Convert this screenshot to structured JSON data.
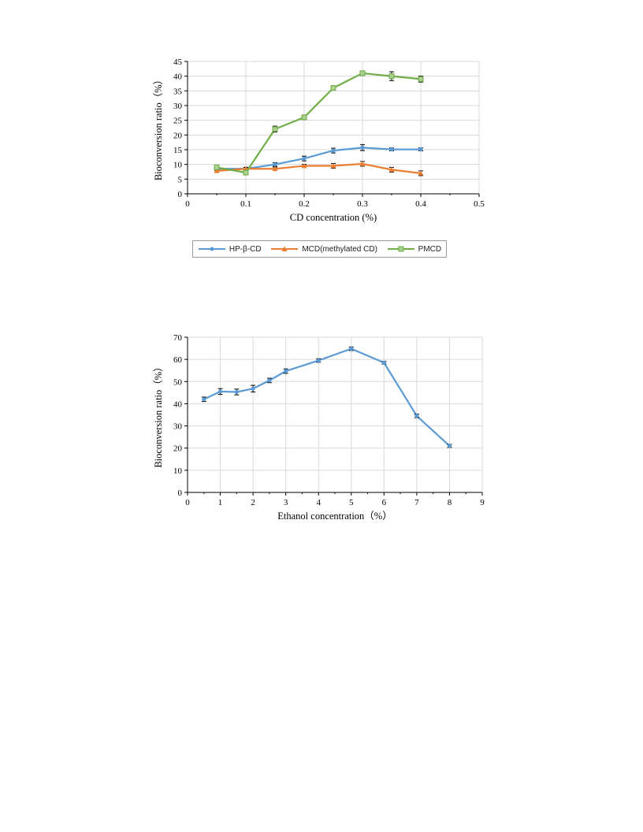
{
  "chart_data": [
    {
      "type": "line",
      "xlabel": "CD concentration (%)",
      "ylabel": "Bioconversion ratio（%）",
      "xlim": [
        0,
        0.5
      ],
      "ylim": [
        0,
        45
      ],
      "xticks": [
        0,
        0.1,
        0.2,
        0.3,
        0.4,
        0.5
      ],
      "yticks": [
        0,
        5,
        10,
        15,
        20,
        25,
        30,
        35,
        40,
        45
      ],
      "grid": true,
      "legend_position": "bottom",
      "x": [
        0.05,
        0.1,
        0.15,
        0.2,
        0.25,
        0.3,
        0.35,
        0.4
      ],
      "series": [
        {
          "name": "HP-β-CD",
          "color": "#5b9bd5",
          "marker": "circle",
          "values": [
            8.5,
            8.5,
            10.0,
            12.0,
            14.7,
            15.7,
            15.1,
            15.1
          ],
          "errors": [
            0.5,
            0.5,
            0.6,
            0.8,
            0.8,
            1.0,
            0.5,
            0.5
          ]
        },
        {
          "name": "MCD(methylated CD)",
          "color": "#ed7d31",
          "marker": "triangle",
          "values": [
            7.8,
            8.5,
            8.5,
            9.5,
            9.5,
            10.2,
            8.2,
            7.0
          ],
          "errors": [
            0.5,
            0.5,
            0.6,
            0.5,
            0.8,
            0.8,
            0.8,
            0.8
          ]
        },
        {
          "name": "PMCD",
          "color": "#70ad47",
          "marker": "square",
          "values": [
            9.0,
            7.2,
            22.0,
            26.0,
            36.0,
            41.0,
            40.0,
            39.0
          ],
          "errors": [
            0.7,
            0.7,
            1.0,
            0.8,
            0.7,
            0.8,
            1.5,
            1.0
          ]
        }
      ]
    },
    {
      "type": "line",
      "xlabel": "Ethanol concentration（%）",
      "ylabel": "Bioconversion ratio（%）",
      "xlim": [
        0,
        9
      ],
      "ylim": [
        0,
        70
      ],
      "xticks": [
        0,
        1,
        2,
        3,
        4,
        5,
        6,
        7,
        8,
        9
      ],
      "yticks": [
        0,
        10,
        20,
        30,
        40,
        50,
        60,
        70
      ],
      "grid": true,
      "x": [
        0.5,
        1,
        1.5,
        2,
        2.5,
        3,
        4,
        5,
        6,
        7,
        8
      ],
      "series": [
        {
          "color": "#5b9bd5",
          "marker": "circle",
          "values": [
            42.0,
            45.5,
            45.3,
            46.8,
            50.5,
            54.7,
            59.5,
            64.8,
            58.5,
            34.5,
            21.0
          ],
          "errors": [
            1.0,
            1.3,
            1.3,
            1.5,
            1.0,
            1.0,
            0.8,
            0.8,
            0.6,
            0.8,
            0.7
          ]
        }
      ]
    }
  ]
}
